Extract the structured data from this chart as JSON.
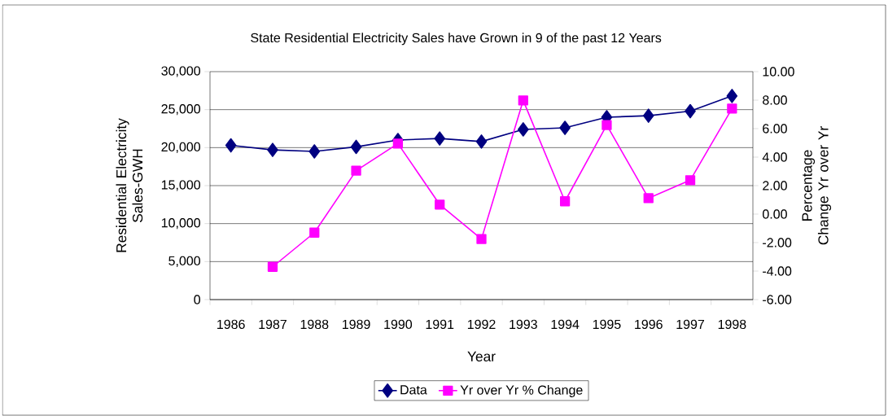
{
  "chart_data": {
    "type": "line",
    "title": "State Residential Electricity Sales have Grown in 9 of the past 12 Years",
    "xlabel": "Year",
    "ylabel": "Residential Electricity Sales-GWH",
    "y2label": "Percentage Change Yr over Yr",
    "categories": [
      "1986",
      "1987",
      "1988",
      "1989",
      "1990",
      "1991",
      "1992",
      "1993",
      "1994",
      "1995",
      "1996",
      "1997",
      "1998"
    ],
    "series": [
      {
        "name": "Data",
        "color": "#000080",
        "marker": "diamond",
        "values": [
          20300,
          19700,
          19500,
          20100,
          21000,
          21200,
          20800,
          22400,
          22600,
          24000,
          24200,
          24800,
          26800
        ]
      },
      {
        "name": "Yr over Yr % Change",
        "color": "#ff00ff",
        "marker": "square",
        "axis": "y2",
        "values": [
          null,
          -3.7,
          -1.3,
          3.05,
          4.95,
          0.67,
          -1.75,
          7.98,
          0.9,
          6.25,
          1.12,
          2.38,
          7.41
        ]
      }
    ],
    "ylim": [
      0,
      30000
    ],
    "yticks": [
      0,
      {
        "value": 5000,
        "label": "5,000"
      },
      {
        "value": 10000,
        "label": "10,000"
      },
      {
        "value": 15000,
        "label": "15,000"
      },
      {
        "value": 20000,
        "label": "20,000"
      },
      {
        "value": 25000,
        "label": "25,000"
      },
      {
        "value": 30000,
        "label": "30,000"
      }
    ],
    "y2lim": [
      -6,
      10
    ],
    "y2ticks": [
      {
        "value": -6,
        "label": "-6.00"
      },
      {
        "value": -4,
        "label": "-4.00"
      },
      {
        "value": -2,
        "label": "-2.00"
      },
      {
        "value": 0,
        "label": "0.00"
      },
      {
        "value": 2,
        "label": "2.00"
      },
      {
        "value": 4,
        "label": "4.00"
      },
      {
        "value": 6,
        "label": "6.00"
      },
      {
        "value": 8,
        "label": "8.00"
      },
      {
        "value": 10,
        "label": "10.00"
      }
    ],
    "grid": "y",
    "legend": "bottom",
    "line_style": "solid"
  }
}
